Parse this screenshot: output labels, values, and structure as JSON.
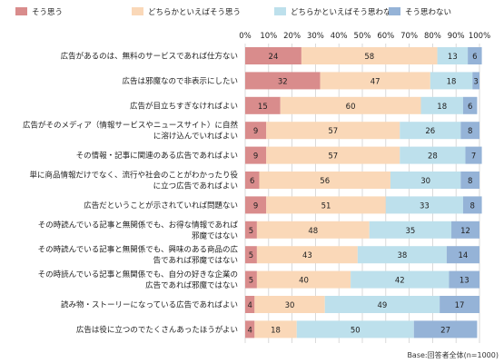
{
  "chart_data": {
    "type": "bar",
    "stacked": true,
    "orientation": "horizontal",
    "title": "",
    "xlabel": "",
    "ylabel": "",
    "xlim": [
      0,
      100
    ],
    "x_ticks": [
      "0%",
      "10%",
      "20%",
      "30%",
      "40%",
      "50%",
      "60%",
      "70%",
      "80%",
      "90%",
      "100%"
    ],
    "grid": true,
    "legend_position": "top",
    "categories": [
      "広告があるのは、無料のサービスであれば仕方ない",
      "広告は邪魔なので非表示にしたい",
      "広告が目立ちすぎなければよい",
      "広告がそのメディア（情報サービスやニュースサイト）に自然に溶け込んでいればよい",
      "その情報・記事に関連のある広告であればよい",
      "単に商品情報だけでなく、流行や社会のことがわかったり役に立つ広告であればよい",
      "広告だということが示されていれば問題ない",
      "その時読んでいる記事と無関係でも、お得な情報であれば邪魔ではない",
      "その時読んでいる記事と無関係でも、興味のある商品の広告であれば邪魔ではない",
      "その時読んでいる記事と無関係でも、自分の好きな企業の広告であれば邪魔ではない",
      "読み物・ストーリーになっている広告であればよい",
      "広告は役に立つのでたくさんあったほうがよい"
    ],
    "category_lines": [
      [
        "広告があるのは、無料のサービスであれば仕方ない"
      ],
      [
        "広告は邪魔なので非表示にしたい"
      ],
      [
        "広告が目立ちすぎなければよい"
      ],
      [
        "広告がそのメディア（情報サービスやニュースサイト）に自然",
        "に溶け込んでいればよい"
      ],
      [
        "その情報・記事に関連のある広告であればよい"
      ],
      [
        "単に商品情報だけでなく、流行や社会のことがわかったり役",
        "に立つ広告であればよい"
      ],
      [
        "広告だということが示されていれば問題ない"
      ],
      [
        "その時読んでいる記事と無関係でも、お得な情報であれば",
        "邪魔ではない"
      ],
      [
        "その時読んでいる記事と無関係でも、興味のある商品の広",
        "告であれば邪魔ではない"
      ],
      [
        "その時読んでいる記事と無関係でも、自分の好きな企業の",
        "広告であれば邪魔ではない"
      ],
      [
        "読み物・ストーリーになっている広告であればよい"
      ],
      [
        "広告は役に立つのでたくさんあったほうがよい"
      ]
    ],
    "series": [
      {
        "name": "そう思う",
        "color": "#d98c8c",
        "values": [
          24,
          32,
          15,
          9,
          9,
          6,
          9,
          5,
          5,
          5,
          4,
          4
        ]
      },
      {
        "name": "どちらかといえばそう思う",
        "color": "#fad8b8",
        "values": [
          58,
          47,
          60,
          57,
          57,
          56,
          51,
          48,
          43,
          40,
          30,
          18
        ]
      },
      {
        "name": "どちらかといえばそう思わない",
        "color": "#bde0ec",
        "values": [
          13,
          18,
          18,
          26,
          28,
          30,
          33,
          35,
          38,
          42,
          49,
          50
        ]
      },
      {
        "name": "そう思わない",
        "color": "#95b3d7",
        "values": [
          6,
          3,
          6,
          8,
          7,
          8,
          8,
          12,
          14,
          13,
          17,
          27
        ]
      }
    ],
    "note": "Base:回答者全体(n=1000)"
  }
}
